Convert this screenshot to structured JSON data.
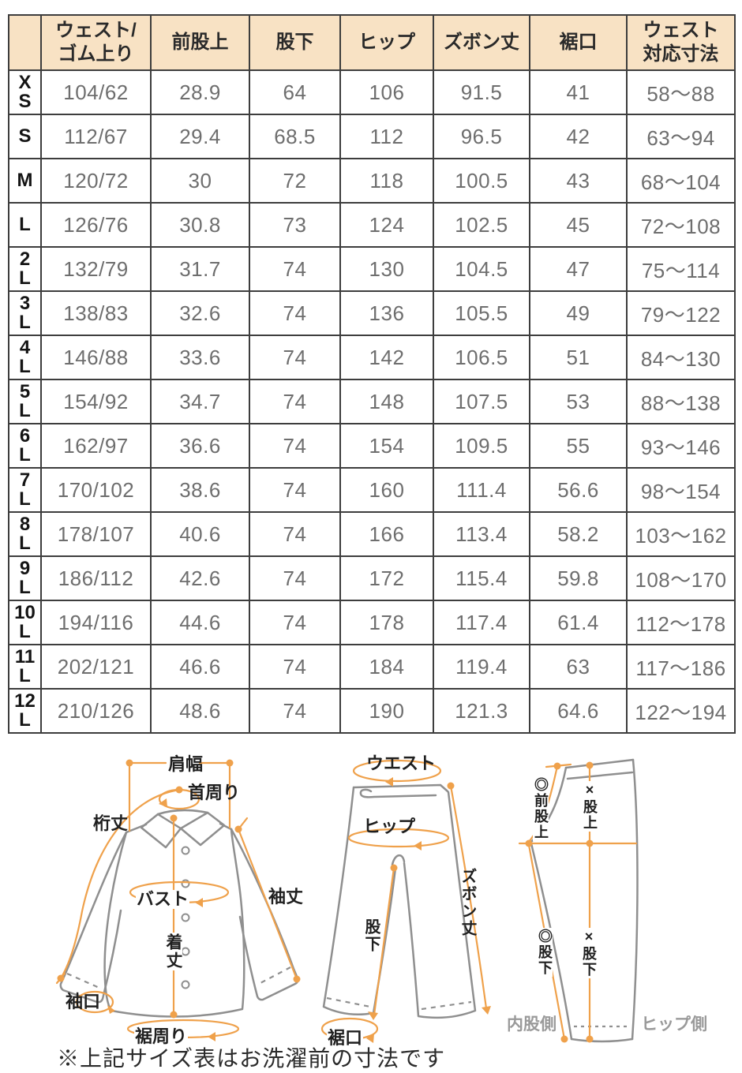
{
  "table": {
    "headers": [
      "",
      "ウェスト/\nゴム上り",
      "前股上",
      "股下",
      "ヒップ",
      "ズボン丈",
      "裾口",
      "ウェスト\n対応寸法"
    ],
    "rows": [
      {
        "size": "X\nS",
        "cells": [
          "104/62",
          "28.9",
          "64",
          "106",
          "91.5",
          "41",
          "58〜88"
        ]
      },
      {
        "size": "S",
        "cells": [
          "112/67",
          "29.4",
          "68.5",
          "112",
          "96.5",
          "42",
          "63〜94"
        ]
      },
      {
        "size": "M",
        "cells": [
          "120/72",
          "30",
          "72",
          "118",
          "100.5",
          "43",
          "68〜104"
        ]
      },
      {
        "size": "L",
        "cells": [
          "126/76",
          "30.8",
          "73",
          "124",
          "102.5",
          "45",
          "72〜108"
        ]
      },
      {
        "size": "2\nL",
        "cells": [
          "132/79",
          "31.7",
          "74",
          "130",
          "104.5",
          "47",
          "75〜114"
        ]
      },
      {
        "size": "3\nL",
        "cells": [
          "138/83",
          "32.6",
          "74",
          "136",
          "105.5",
          "49",
          "79〜122"
        ]
      },
      {
        "size": "4\nL",
        "cells": [
          "146/88",
          "33.6",
          "74",
          "142",
          "106.5",
          "51",
          "84〜130"
        ]
      },
      {
        "size": "5\nL",
        "cells": [
          "154/92",
          "34.7",
          "74",
          "148",
          "107.5",
          "53",
          "88〜138"
        ]
      },
      {
        "size": "6\nL",
        "cells": [
          "162/97",
          "36.6",
          "74",
          "154",
          "109.5",
          "55",
          "93〜146"
        ]
      },
      {
        "size": "7\nL",
        "cells": [
          "170/102",
          "38.6",
          "74",
          "160",
          "111.4",
          "56.6",
          "98〜154"
        ]
      },
      {
        "size": "8\nL",
        "cells": [
          "178/107",
          "40.6",
          "74",
          "166",
          "113.4",
          "58.2",
          "103〜162"
        ]
      },
      {
        "size": "9\nL",
        "cells": [
          "186/112",
          "42.6",
          "74",
          "172",
          "115.4",
          "59.8",
          "108〜170"
        ]
      },
      {
        "size": "10\nL",
        "cells": [
          "194/116",
          "44.6",
          "74",
          "178",
          "117.4",
          "61.4",
          "112〜178"
        ]
      },
      {
        "size": "11\nL",
        "cells": [
          "202/121",
          "46.6",
          "74",
          "184",
          "119.4",
          "63",
          "117〜186"
        ]
      },
      {
        "size": "12\nL",
        "cells": [
          "210/126",
          "48.6",
          "74",
          "190",
          "121.3",
          "64.6",
          "122〜194"
        ]
      }
    ]
  },
  "diagrams": {
    "shirt": {
      "labels": {
        "shoulder_width": "肩幅",
        "neck_around": "首周り",
        "sleeve_reach": "桁丈",
        "bust": "バスト",
        "sleeve_length": "袖丈",
        "body_length": "着丈",
        "cuff_opening": "袖口",
        "hem_around": "裾周り"
      }
    },
    "pants_front": {
      "labels": {
        "waist": "ウエスト",
        "hip": "ヒップ",
        "pants_length": "ズボン丈",
        "inseam": "股下",
        "hem_opening": "裾口"
      }
    },
    "pants_side": {
      "labels": {
        "front_rise": "◎前股上",
        "rise": "×股上",
        "inseam_curve": "◎股下",
        "inseam_straight": "×股下",
        "inner_side": "内股側",
        "hip_side": "ヒップ側"
      }
    }
  },
  "note": "※上記サイズ表はお洗濯前の寸法です",
  "colors": {
    "header_bg": "#f8e2c4",
    "table_border": "#3d3d3d",
    "number_text": "#6e6e6e",
    "accent_orange": "#efa14b",
    "outline_grey": "#8f8f8f",
    "side_label_grey": "#9a9a9a"
  }
}
